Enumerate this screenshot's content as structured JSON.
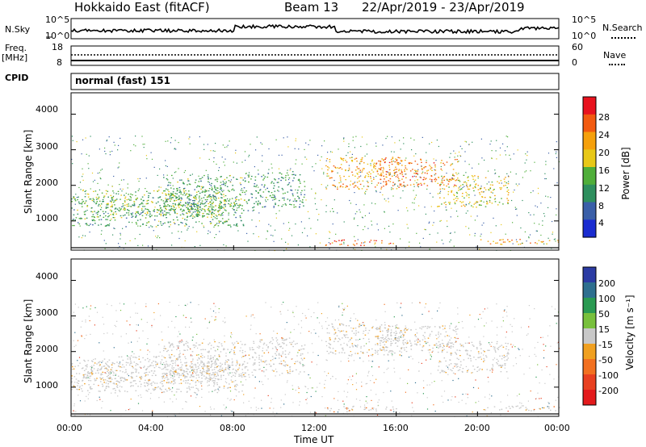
{
  "header": {
    "station": "Hokkaido East (fitACF)",
    "beam": "Beam 13",
    "date_range": "22/Apr/2019 - 23/Apr/2019"
  },
  "noise_panel": {
    "left_label": "N.Sky",
    "right_label": "N.Search",
    "left_ticks": [
      "10^5",
      "10^0"
    ],
    "right_ticks": [
      "10^5",
      "10^0"
    ]
  },
  "freq_panel": {
    "left_label_line1": "Freq.",
    "left_label_line2": "[MHz]",
    "right_label": "Nave",
    "left_ticks": [
      "18",
      "8"
    ],
    "right_ticks": [
      "60",
      "0"
    ]
  },
  "cpid_panel": {
    "label": "CPID",
    "value": "normal (fast) 151"
  },
  "axes": {
    "y_label": "Slant Range [km]",
    "x_label": "Time UT",
    "y_ticks": [
      "4000",
      "3000",
      "2000",
      "1000"
    ],
    "x_ticks": [
      "00:00",
      "04:00",
      "08:00",
      "12:00",
      "16:00",
      "20:00",
      "00:00"
    ]
  },
  "power_scale": {
    "label": "Power [dB]",
    "ticks": [
      "28",
      "24",
      "20",
      "16",
      "12",
      "8",
      "4"
    ],
    "colors": [
      "#e8121e",
      "#f25a10",
      "#f5a00c",
      "#e8c818",
      "#4fae3a",
      "#2e8f5e",
      "#3a5fa8",
      "#1a2cd0"
    ]
  },
  "velocity_scale": {
    "label": "Velocity [m s⁻¹]",
    "ticks": [
      "200",
      "100",
      "50",
      "15",
      "-15",
      "-50",
      "-100",
      "-200"
    ],
    "colors": [
      "#2b3ba3",
      "#2e6f8f",
      "#2a9a52",
      "#78c03c",
      "#c8c8c8",
      "#f0a020",
      "#f27020",
      "#e84020",
      "#e31a1c"
    ]
  },
  "chart_data": {
    "type": "heatmap",
    "x_range": [
      "00:00",
      "00:00"
    ],
    "y_range": [
      180,
      4600
    ],
    "panels": [
      "Power [dB]",
      "Velocity [m s⁻¹]"
    ],
    "bands": [
      {
        "t0": 0.0,
        "t1": 8.5,
        "r0": 850,
        "r1": 1700,
        "power": 12,
        "velocity": -20
      },
      {
        "t0": 0.5,
        "t1": 7.5,
        "r0": 1100,
        "r1": 1900,
        "power": 14,
        "velocity": -20
      },
      {
        "t0": 4.5,
        "t1": 9.0,
        "r0": 1300,
        "r1": 2300,
        "power": 12,
        "velocity": -30
      },
      {
        "t0": 9.0,
        "t1": 11.5,
        "r0": 1400,
        "r1": 2400,
        "power": 11,
        "velocity": -15
      },
      {
        "t0": 12.5,
        "t1": 16.5,
        "r0": 1900,
        "r1": 2800,
        "power": 22,
        "velocity": -30
      },
      {
        "t0": 15.0,
        "t1": 19.0,
        "r0": 2000,
        "r1": 2750,
        "power": 24,
        "velocity": -20
      },
      {
        "t0": 18.0,
        "t1": 21.5,
        "r0": 1400,
        "r1": 2300,
        "power": 18,
        "velocity": -20
      },
      {
        "t0": 12.5,
        "t1": 16.0,
        "r0": 320,
        "r1": 480,
        "power": 26,
        "velocity": -60
      },
      {
        "t0": 20.0,
        "t1": 24.0,
        "r0": 350,
        "r1": 500,
        "power": 22,
        "velocity": -50
      }
    ]
  }
}
